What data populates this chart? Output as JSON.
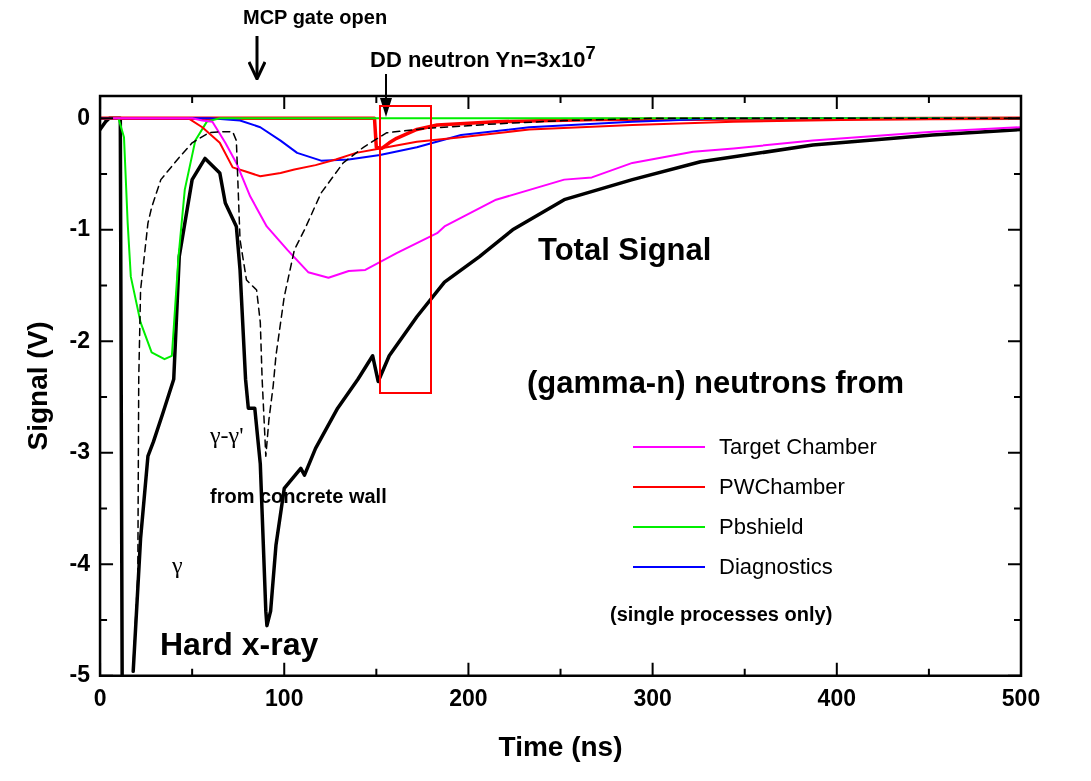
{
  "chart_data": {
    "type": "line",
    "xlabel": "Time (ns)",
    "ylabel": "Signal (V)",
    "legend_title": "(gamma-n) neutrons from",
    "legend": "right",
    "grid": false,
    "marker": "none",
    "line_style": "solid",
    "xlim": [
      0,
      500
    ],
    "xticks": [
      0,
      {
        "value": 50,
        "label": null
      },
      100,
      {
        "value": 150,
        "label": null
      },
      200,
      {
        "value": 250,
        "label": null
      },
      300,
      {
        "value": 350,
        "label": null
      },
      400,
      {
        "value": 450,
        "label": null
      },
      500
    ],
    "ylim": [
      -5,
      0.2
    ],
    "yticks": [
      0,
      {
        "value": -0.5,
        "label": null
      },
      -1,
      {
        "value": -1.5,
        "label": null
      },
      -2,
      {
        "value": -2.5,
        "label": null
      },
      -3,
      {
        "value": -3.5,
        "label": null
      },
      -4,
      {
        "value": -4.5,
        "label": null
      },
      -5
    ],
    "annotations": [
      "MCP gate open",
      {
        "text": "DD neutron Yn=3x10$^{7}$",
        "x": 155,
        "y": 0
      },
      "Hard x-ray",
      "γ",
      "γ-γ'",
      "from concrete wall",
      "(single processes only)"
    ],
    "series": [
      {
        "color": "#000000",
        "line_style": "dashed",
        "x": [
          17.8,
          20.5,
          21,
          22,
          26,
          28,
          33,
          43,
          50,
          59,
          65,
          72,
          74,
          76,
          79.5,
          85,
          87,
          88,
          90,
          91.7,
          94,
          95.5,
          100,
          105.5,
          111,
          120,
          132,
          143,
          155.5,
          178,
          215,
          252,
          300,
          500
        ],
        "values": [
          -4.96,
          -4.1,
          -2.34,
          -1.54,
          -0.94,
          -0.8,
          -0.55,
          -0.35,
          -0.22,
          -0.13,
          -0.12,
          -0.12,
          -0.2,
          -1.09,
          -1.45,
          -1.54,
          -1.83,
          -2.34,
          -3.03,
          -2.7,
          -2.4,
          -2.13,
          -1.6,
          -1.18,
          -1,
          -0.67,
          -0.4,
          -0.26,
          -0.13,
          -0.09,
          -0.05,
          -0.02,
          0,
          0
        ]
      },
      {
        "name": "Target Chamber",
        "color": "#ff00ff",
        "x": [
          0,
          50,
          55.5,
          61,
          68,
          74,
          81.5,
          90.5,
          101.7,
          113,
          124,
          135,
          144,
          161,
          183,
          187,
          215,
          252,
          267,
          289,
          322,
          344,
          387,
          452,
          500
        ],
        "values": [
          0,
          0,
          -0.02,
          -0.03,
          -0.22,
          -0.4,
          -0.7,
          -0.97,
          -1.18,
          -1.38,
          -1.43,
          -1.37,
          -1.36,
          -1.21,
          -1.03,
          -0.97,
          -0.73,
          -0.55,
          -0.53,
          -0.4,
          -0.3,
          -0.27,
          -0.2,
          -0.12,
          -0.08
        ]
      },
      {
        "name": "PWChamber",
        "color": "#ff0000",
        "x": [
          0,
          48,
          55.5,
          65,
          72,
          79.5,
          87,
          98,
          105.5,
          117,
          128,
          139,
          152,
          172,
          196,
          233,
          289,
          344,
          420,
          500
        ],
        "values": [
          0,
          0,
          -0.08,
          -0.22,
          -0.44,
          -0.48,
          -0.52,
          -0.49,
          -0.46,
          -0.42,
          -0.37,
          -0.31,
          -0.27,
          -0.21,
          -0.17,
          -0.1,
          -0.06,
          -0.03,
          -0.01,
          0
        ]
      },
      {
        "name": "Pbshield",
        "color": "#00ee00",
        "x": [
          0,
          10,
          13,
          15,
          16.7,
          22,
          28,
          35,
          39,
          42.6,
          46,
          51.7,
          58,
          65,
          500
        ],
        "values": [
          0,
          0,
          -0.17,
          -0.94,
          -1.42,
          -1.83,
          -2.1,
          -2.16,
          -2.13,
          -1.24,
          -0.64,
          -0.2,
          -0.03,
          0,
          0
        ]
      },
      {
        "name": "Diagnostics",
        "color": "#0000ff",
        "x": [
          0,
          60,
          76,
          87,
          98,
          107,
          120,
          135,
          152,
          172,
          196,
          233,
          289,
          340,
          500
        ],
        "values": [
          0,
          0,
          -0.02,
          -0.08,
          -0.2,
          -0.31,
          -0.38,
          -0.37,
          -0.33,
          -0.26,
          -0.15,
          -0.08,
          -0.03,
          0,
          0
        ]
      },
      {
        "color": "#ff0000",
        "x": [
          0,
          149,
          150,
          153,
          157,
          161,
          172,
          183,
          215,
          270,
          500
        ],
        "values": [
          0,
          0,
          -0.26,
          -0.27,
          -0.22,
          -0.18,
          -0.1,
          -0.06,
          -0.03,
          -0.01,
          0
        ]
      },
      {
        "name": "Total Signal",
        "color": "#000000",
        "x": [
          0,
          3,
          5,
          11,
          12,
          15,
          18,
          22,
          26,
          29,
          34,
          40,
          43,
          50,
          57,
          65,
          68,
          74,
          76,
          79,
          80.5,
          84,
          87,
          90,
          90.6,
          92.6,
          95.5,
          100,
          109,
          111,
          117,
          129,
          140,
          148,
          151,
          157,
          172,
          187,
          206,
          224,
          252,
          289,
          326,
          387,
          452,
          500
        ],
        "values": [
          -0.1,
          -0.03,
          0,
          0,
          -5,
          null,
          -4.96,
          -3.77,
          -3.03,
          -2.9,
          -2.65,
          -2.34,
          -1.24,
          -0.55,
          -0.36,
          -0.49,
          -0.76,
          -0.97,
          -1.36,
          -2.34,
          -2.6,
          -2.6,
          -3.1,
          -4.42,
          -4.55,
          -4.42,
          -3.83,
          -3.32,
          -3.14,
          -3.2,
          -2.96,
          -2.6,
          -2.34,
          -2.13,
          -2.36,
          -2.13,
          -1.78,
          -1.47,
          -1.24,
          -1,
          -0.73,
          -0.55,
          -0.39,
          -0.24,
          -0.15,
          -0.1
        ]
      }
    ]
  }
}
